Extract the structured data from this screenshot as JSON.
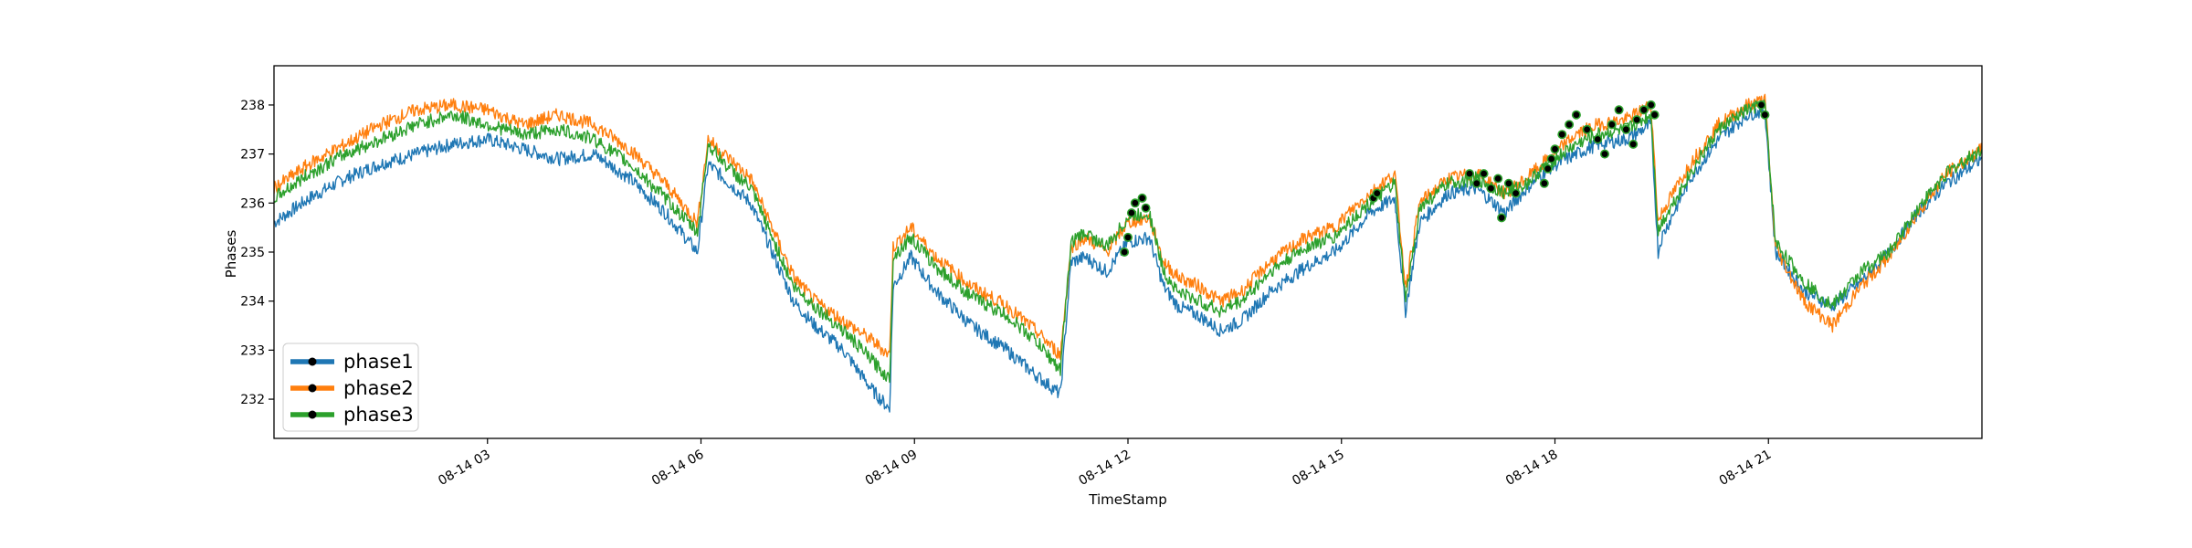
{
  "chart_data": {
    "type": "line",
    "title": "",
    "xlabel": "TimeStamp",
    "ylabel": "Phases",
    "x_range": [
      "08-14 00:00",
      "24:00"
    ],
    "ylim": [
      231.2,
      238.8
    ],
    "x_ticks": [
      {
        "hour": 3,
        "label": "08-14 03"
      },
      {
        "hour": 6,
        "label": "08-14 06"
      },
      {
        "hour": 9,
        "label": "08-14 09"
      },
      {
        "hour": 12,
        "label": "08-14 12"
      },
      {
        "hour": 15,
        "label": "08-14 15"
      },
      {
        "hour": 18,
        "label": "08-14 18"
      },
      {
        "hour": 21,
        "label": "08-14 21"
      }
    ],
    "y_ticks": [
      232,
      233,
      234,
      235,
      236,
      237,
      238
    ],
    "grid": false,
    "legend_position": "lower-left",
    "series": [
      {
        "name": "phase1",
        "color": "#1f77b4",
        "x_hours": [
          0.0,
          0.5,
          1.0,
          1.5,
          2.0,
          2.5,
          3.0,
          3.5,
          4.0,
          4.5,
          5.0,
          5.5,
          5.95,
          6.1,
          6.4,
          6.7,
          7.0,
          7.3,
          7.6,
          8.0,
          8.4,
          8.65,
          8.7,
          8.95,
          9.3,
          9.8,
          10.3,
          10.7,
          11.05,
          11.2,
          11.4,
          11.7,
          12.0,
          12.3,
          12.5,
          12.7,
          13.0,
          13.3,
          13.6,
          14.0,
          14.5,
          14.9,
          15.1,
          15.4,
          15.75,
          15.9,
          16.1,
          16.5,
          16.9,
          17.3,
          17.6,
          17.9,
          18.3,
          18.6,
          19.0,
          19.35,
          19.45,
          19.5,
          19.9,
          20.3,
          20.7,
          20.95,
          21.1,
          21.5,
          21.9,
          22.3,
          22.7,
          23.1,
          23.5,
          24.0
        ],
        "values": [
          235.6,
          236.1,
          236.5,
          236.8,
          237.0,
          237.2,
          237.3,
          237.1,
          236.9,
          237.0,
          236.5,
          235.8,
          235.0,
          236.8,
          236.4,
          236.0,
          235.0,
          234.0,
          233.5,
          233.0,
          232.2,
          231.8,
          234.3,
          234.9,
          234.2,
          233.5,
          233.0,
          232.5,
          232.1,
          234.8,
          234.9,
          234.6,
          235.2,
          235.3,
          234.3,
          233.9,
          233.7,
          233.4,
          233.6,
          234.2,
          234.7,
          235.0,
          235.3,
          235.8,
          236.1,
          233.8,
          235.6,
          236.2,
          236.3,
          235.8,
          236.3,
          236.7,
          237.0,
          237.2,
          237.3,
          237.6,
          235.0,
          235.3,
          236.5,
          237.3,
          237.8,
          237.9,
          235.0,
          234.2,
          233.9,
          234.4,
          235.0,
          235.8,
          236.4,
          236.9
        ]
      },
      {
        "name": "phase2",
        "color": "#ff7f0e",
        "x_hours": [
          0.0,
          0.5,
          1.0,
          1.5,
          2.0,
          2.5,
          3.0,
          3.5,
          4.0,
          4.5,
          5.0,
          5.5,
          5.95,
          6.1,
          6.4,
          6.7,
          7.0,
          7.3,
          7.6,
          8.0,
          8.4,
          8.65,
          8.7,
          8.95,
          9.3,
          9.8,
          10.3,
          10.7,
          11.05,
          11.2,
          11.4,
          11.7,
          12.0,
          12.3,
          12.5,
          12.7,
          13.0,
          13.3,
          13.6,
          14.0,
          14.5,
          14.9,
          15.1,
          15.4,
          15.75,
          15.9,
          16.1,
          16.5,
          16.9,
          17.3,
          17.6,
          17.9,
          18.3,
          18.6,
          19.0,
          19.35,
          19.45,
          19.5,
          19.9,
          20.3,
          20.7,
          20.95,
          21.1,
          21.5,
          21.9,
          22.3,
          22.7,
          23.1,
          23.5,
          24.0
        ],
        "values": [
          236.3,
          236.8,
          237.2,
          237.6,
          237.9,
          238.0,
          237.9,
          237.6,
          237.8,
          237.6,
          237.1,
          236.4,
          235.6,
          237.3,
          236.9,
          236.5,
          235.5,
          234.5,
          234.0,
          233.6,
          233.2,
          232.9,
          235.1,
          235.5,
          234.9,
          234.3,
          233.9,
          233.4,
          232.9,
          235.1,
          235.3,
          235.0,
          235.6,
          235.7,
          234.8,
          234.5,
          234.3,
          234.0,
          234.2,
          234.8,
          235.3,
          235.5,
          235.8,
          236.2,
          236.6,
          234.3,
          236.0,
          236.5,
          236.6,
          236.2,
          236.5,
          236.9,
          237.4,
          237.6,
          237.7,
          238.0,
          235.6,
          235.8,
          236.8,
          237.6,
          238.0,
          238.1,
          235.1,
          234.0,
          233.5,
          234.3,
          234.9,
          235.8,
          236.6,
          237.1
        ]
      },
      {
        "name": "phase3",
        "color": "#2ca02c",
        "x_hours": [
          0.0,
          0.5,
          1.0,
          1.5,
          2.0,
          2.5,
          3.0,
          3.5,
          4.0,
          4.5,
          5.0,
          5.5,
          5.95,
          6.1,
          6.4,
          6.7,
          7.0,
          7.3,
          7.6,
          8.0,
          8.4,
          8.65,
          8.7,
          8.95,
          9.3,
          9.8,
          10.3,
          10.7,
          11.05,
          11.2,
          11.4,
          11.7,
          12.0,
          12.3,
          12.5,
          12.7,
          13.0,
          13.3,
          13.6,
          14.0,
          14.5,
          14.9,
          15.1,
          15.4,
          15.75,
          15.9,
          16.1,
          16.5,
          16.9,
          17.3,
          17.6,
          17.9,
          18.3,
          18.6,
          19.0,
          19.35,
          19.45,
          19.5,
          19.9,
          20.3,
          20.7,
          20.95,
          21.1,
          21.5,
          21.9,
          22.3,
          22.7,
          23.1,
          23.5,
          24.0
        ],
        "values": [
          236.1,
          236.6,
          237.0,
          237.3,
          237.6,
          237.8,
          237.6,
          237.4,
          237.5,
          237.3,
          236.8,
          236.1,
          235.4,
          237.2,
          236.7,
          236.3,
          235.3,
          234.3,
          233.9,
          233.4,
          232.8,
          232.4,
          234.9,
          235.3,
          234.7,
          234.1,
          233.7,
          233.2,
          232.6,
          235.2,
          235.4,
          235.1,
          235.7,
          235.8,
          234.6,
          234.2,
          234.0,
          233.8,
          234.0,
          234.6,
          235.1,
          235.3,
          235.6,
          236.0,
          236.4,
          234.0,
          235.9,
          236.4,
          236.5,
          236.2,
          236.4,
          236.8,
          237.2,
          237.4,
          237.5,
          237.8,
          235.4,
          235.6,
          236.6,
          237.5,
          237.9,
          238.0,
          235.2,
          234.4,
          233.9,
          234.6,
          235.0,
          235.9,
          236.6,
          237.1
        ]
      }
    ],
    "markers": {
      "fill": "#000000",
      "edge": "#2ca02c",
      "points": [
        {
          "hour": 11.95,
          "value": 235.0
        },
        {
          "hour": 12.0,
          "value": 235.3
        },
        {
          "hour": 12.05,
          "value": 235.8
        },
        {
          "hour": 12.1,
          "value": 236.0
        },
        {
          "hour": 12.2,
          "value": 236.1
        },
        {
          "hour": 12.25,
          "value": 235.9
        },
        {
          "hour": 15.45,
          "value": 236.1
        },
        {
          "hour": 15.5,
          "value": 236.2
        },
        {
          "hour": 16.8,
          "value": 236.6
        },
        {
          "hour": 16.9,
          "value": 236.4
        },
        {
          "hour": 17.0,
          "value": 236.6
        },
        {
          "hour": 17.1,
          "value": 236.3
        },
        {
          "hour": 17.2,
          "value": 236.5
        },
        {
          "hour": 17.25,
          "value": 235.7
        },
        {
          "hour": 17.35,
          "value": 236.4
        },
        {
          "hour": 17.45,
          "value": 236.2
        },
        {
          "hour": 17.85,
          "value": 236.4
        },
        {
          "hour": 17.9,
          "value": 236.7
        },
        {
          "hour": 17.95,
          "value": 236.9
        },
        {
          "hour": 18.0,
          "value": 237.1
        },
        {
          "hour": 18.1,
          "value": 237.4
        },
        {
          "hour": 18.2,
          "value": 237.6
        },
        {
          "hour": 18.3,
          "value": 237.8
        },
        {
          "hour": 18.45,
          "value": 237.5
        },
        {
          "hour": 18.6,
          "value": 237.3
        },
        {
          "hour": 18.7,
          "value": 237.0
        },
        {
          "hour": 18.8,
          "value": 237.6
        },
        {
          "hour": 18.9,
          "value": 237.9
        },
        {
          "hour": 19.0,
          "value": 237.5
        },
        {
          "hour": 19.1,
          "value": 237.2
        },
        {
          "hour": 19.15,
          "value": 237.7
        },
        {
          "hour": 19.25,
          "value": 237.9
        },
        {
          "hour": 19.35,
          "value": 238.0
        },
        {
          "hour": 19.4,
          "value": 237.8
        },
        {
          "hour": 20.9,
          "value": 238.0
        },
        {
          "hour": 20.95,
          "value": 237.8
        }
      ]
    }
  }
}
